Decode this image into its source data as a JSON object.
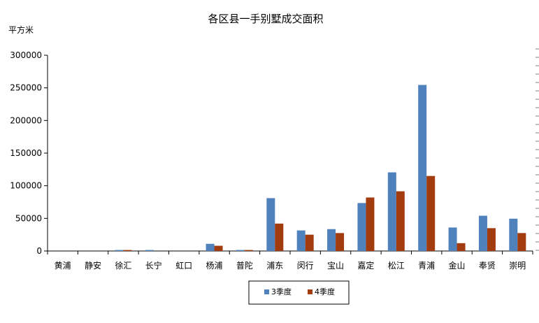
{
  "chart_data": {
    "type": "bar",
    "title": "各区县一手别墅成交面积",
    "ylabel": "平方米",
    "xlabel": "",
    "ylim": [
      0,
      300000
    ],
    "yticks": [
      0,
      50000,
      100000,
      150000,
      200000,
      250000,
      300000
    ],
    "grid": false,
    "legend_position": "bottom",
    "categories": [
      "黄浦",
      "静安",
      "徐汇",
      "长宁",
      "虹口",
      "杨浦",
      "普陀",
      "浦东",
      "闵行",
      "宝山",
      "嘉定",
      "松江",
      "青浦",
      "金山",
      "奉贤",
      "崇明"
    ],
    "series": [
      {
        "name": "3季度",
        "color": "#4F81BD",
        "values": [
          0,
          0,
          1500,
          1500,
          0,
          11000,
          1500,
          81000,
          31500,
          33500,
          73500,
          120500,
          254500,
          36000,
          54000,
          49500
        ]
      },
      {
        "name": "4季度",
        "color": "#A23C0F",
        "values": [
          0,
          0,
          1500,
          0,
          0,
          8000,
          1500,
          42000,
          25000,
          27500,
          82000,
          91500,
          115000,
          12000,
          35000,
          27500
        ]
      }
    ]
  }
}
